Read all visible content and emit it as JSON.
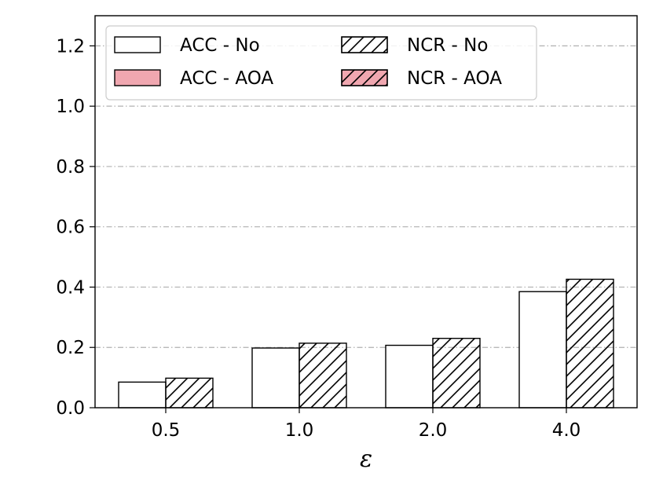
{
  "chart_data": {
    "type": "bar",
    "categories": [
      "0.5",
      "1.0",
      "2.0",
      "4.0"
    ],
    "series": [
      {
        "name": "ACC - No",
        "values": [
          0.085,
          0.198,
          0.207,
          0.385
        ],
        "fill": "#ffffff",
        "hatch": false
      },
      {
        "name": "NCR - No",
        "values": [
          0.098,
          0.214,
          0.23,
          0.426
        ],
        "fill": "#ffffff",
        "hatch": true
      },
      {
        "name": "ACC - AOA",
        "values": [
          0,
          0,
          0,
          0
        ],
        "fill": "#f0a7b0",
        "hatch": false
      },
      {
        "name": "NCR - AOA",
        "values": [
          0,
          0,
          0,
          0
        ],
        "fill": "#f0a7b0",
        "hatch": true
      }
    ],
    "yticks": [
      "0.0",
      "0.2",
      "0.4",
      "0.6",
      "0.8",
      "1.0",
      "1.2"
    ],
    "ylim": [
      0,
      1.3
    ],
    "xlabel": "ε",
    "ylabel": "",
    "title": "",
    "grid": true,
    "legend_position": "top",
    "colors": {
      "grid": "#b0b0b0",
      "edge": "#000000",
      "aoa_fill": "#f0a7b0"
    }
  }
}
